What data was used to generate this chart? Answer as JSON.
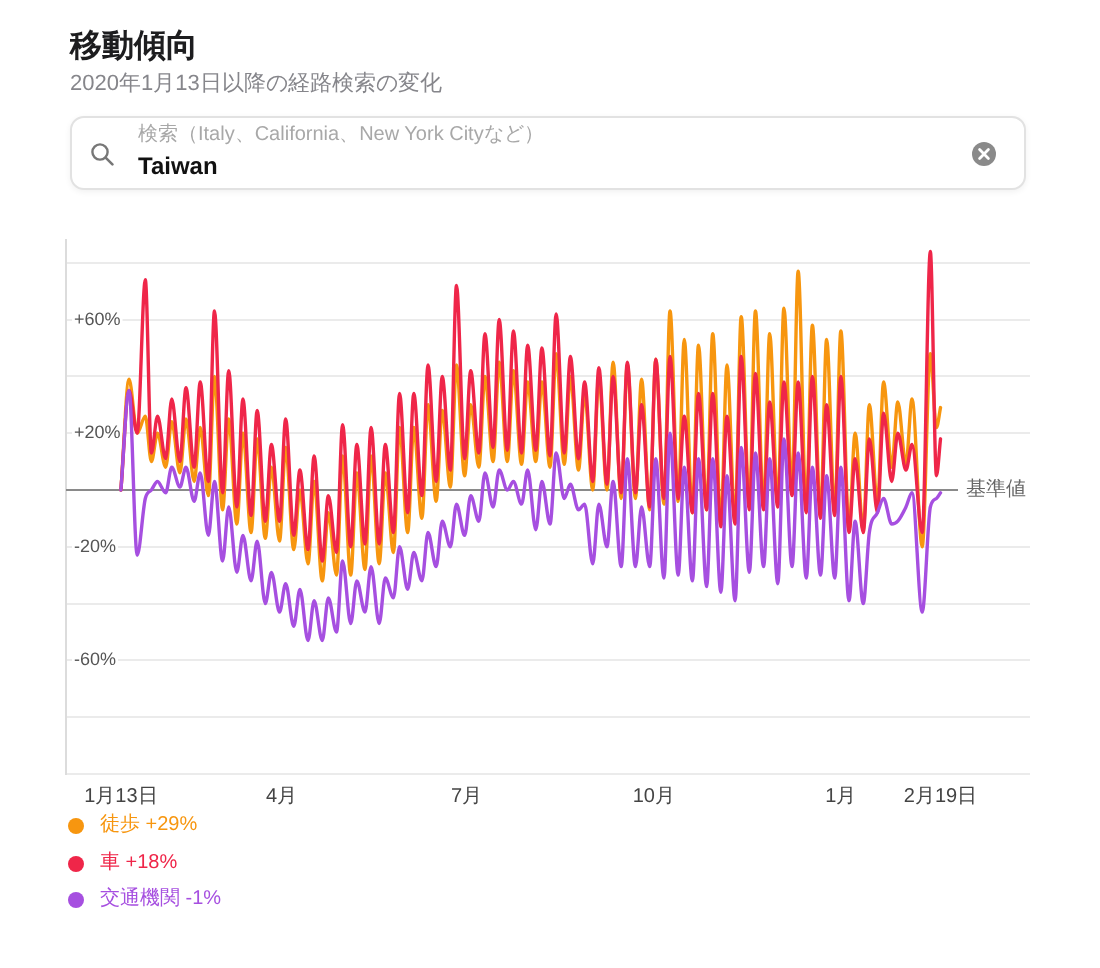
{
  "chart_data": {
    "type": "line",
    "title": "移動傾向",
    "subtitle": "2020年1月13日以降の経路検索の変化",
    "annotations": [
      "検索（Italy、California、New York Cityなど）",
      "Taiwan"
    ],
    "x": [
      "2020-01-13",
      "2020-01-17",
      "2020-01-21",
      "2020-01-25",
      "2020-01-28",
      "2020-01-31",
      "2020-02-04",
      "2020-02-07",
      "2020-02-11",
      "2020-02-14",
      "2020-02-18",
      "2020-02-21",
      "2020-02-25",
      "2020-02-28",
      "2020-03-03",
      "2020-03-06",
      "2020-03-10",
      "2020-03-13",
      "2020-03-17",
      "2020-03-20",
      "2020-03-24",
      "2020-03-27",
      "2020-03-31",
      "2020-04-03",
      "2020-04-07",
      "2020-04-10",
      "2020-04-14",
      "2020-04-17",
      "2020-04-21",
      "2020-04-24",
      "2020-04-28",
      "2020-05-01",
      "2020-05-05",
      "2020-05-08",
      "2020-05-12",
      "2020-05-15",
      "2020-05-19",
      "2020-05-22",
      "2020-05-26",
      "2020-05-29",
      "2020-06-02",
      "2020-06-05",
      "2020-06-09",
      "2020-06-12",
      "2020-06-16",
      "2020-06-19",
      "2020-06-23",
      "2020-06-26",
      "2020-06-30",
      "2020-07-03",
      "2020-07-07",
      "2020-07-10",
      "2020-07-14",
      "2020-07-17",
      "2020-07-21",
      "2020-07-24",
      "2020-07-28",
      "2020-07-31",
      "2020-08-04",
      "2020-08-07",
      "2020-08-11",
      "2020-08-14",
      "2020-08-18",
      "2020-08-21",
      "2020-08-25",
      "2020-08-28",
      "2020-09-01",
      "2020-09-04",
      "2020-09-08",
      "2020-09-11",
      "2020-09-15",
      "2020-09-18",
      "2020-09-22",
      "2020-09-25",
      "2020-09-29",
      "2020-10-02",
      "2020-10-06",
      "2020-10-09",
      "2020-10-13",
      "2020-10-16",
      "2020-10-20",
      "2020-10-23",
      "2020-10-27",
      "2020-10-30",
      "2020-11-03",
      "2020-11-06",
      "2020-11-10",
      "2020-11-13",
      "2020-11-17",
      "2020-11-20",
      "2020-11-24",
      "2020-11-27",
      "2020-12-01",
      "2020-12-04",
      "2020-12-08",
      "2020-12-11",
      "2020-12-15",
      "2020-12-18",
      "2020-12-22",
      "2020-12-25",
      "2020-12-29",
      "2021-01-01",
      "2021-01-05",
      "2021-01-08",
      "2021-01-12",
      "2021-01-15",
      "2021-01-19",
      "2021-01-22",
      "2021-01-26",
      "2021-01-29",
      "2021-02-02",
      "2021-02-05",
      "2021-02-10",
      "2021-02-14",
      "2021-02-17",
      "2021-02-19"
    ],
    "series": [
      {
        "name": "徒歩 +29%",
        "color": "#f7960f",
        "values": [
          0,
          39,
          20,
          26,
          10,
          20,
          8,
          24,
          6,
          25,
          3,
          22,
          -2,
          40,
          -7,
          25,
          -12,
          20,
          -15,
          18,
          -17,
          8,
          -18,
          15,
          -21,
          0,
          -26,
          3,
          -32,
          -8,
          -30,
          12,
          -30,
          6,
          -28,
          12,
          -26,
          6,
          -22,
          22,
          -15,
          22,
          -10,
          30,
          -4,
          28,
          1,
          44,
          5,
          30,
          8,
          40,
          10,
          45,
          10,
          42,
          9,
          38,
          10,
          38,
          8,
          48,
          9,
          40,
          7,
          34,
          0,
          40,
          0,
          45,
          -3,
          44,
          -3,
          39,
          -7,
          46,
          -5,
          63,
          -4,
          53,
          -8,
          51,
          -7,
          55,
          -12,
          44,
          -11,
          61,
          -6,
          63,
          -6,
          55,
          -5,
          64,
          0,
          77,
          -7,
          58,
          -9,
          53,
          -8,
          56,
          -14,
          20,
          -14,
          30,
          -5,
          38,
          8,
          31,
          9,
          32,
          -20,
          48,
          22,
          29
        ]
      },
      {
        "name": "車 +18%",
        "color": "#ef2649",
        "values": [
          0,
          35,
          20,
          74,
          13,
          26,
          11,
          32,
          10,
          36,
          8,
          38,
          3,
          63,
          -1,
          42,
          -6,
          32,
          -9,
          28,
          -11,
          16,
          -11,
          25,
          -16,
          7,
          -21,
          12,
          -25,
          -2,
          -22,
          23,
          -20,
          16,
          -19,
          22,
          -19,
          16,
          -15,
          34,
          -8,
          34,
          -2,
          44,
          3,
          40,
          7,
          72,
          11,
          42,
          13,
          55,
          15,
          60,
          14,
          56,
          13,
          51,
          14,
          50,
          12,
          62,
          13,
          47,
          11,
          38,
          3,
          43,
          2,
          40,
          -1,
          45,
          -1,
          30,
          -6,
          46,
          -3,
          47,
          -3,
          26,
          -8,
          34,
          -7,
          34,
          -13,
          26,
          -12,
          47,
          -7,
          41,
          -7,
          31,
          -6,
          38,
          -2,
          38,
          -8,
          40,
          -10,
          30,
          -9,
          40,
          -15,
          11,
          -15,
          18,
          -8,
          27,
          3,
          20,
          7,
          16,
          -15,
          84,
          5,
          18
        ]
      },
      {
        "name": "交通機関 -1%",
        "color": "#a64fe0",
        "values": [
          0,
          35,
          -23,
          -3,
          0,
          3,
          -1,
          8,
          1,
          8,
          -4,
          6,
          -16,
          3,
          -25,
          -6,
          -29,
          -16,
          -32,
          -18,
          -40,
          -29,
          -43,
          -33,
          -48,
          -35,
          -53,
          -39,
          -53,
          -38,
          -50,
          -25,
          -47,
          -32,
          -43,
          -27,
          -47,
          -31,
          -38,
          -20,
          -35,
          -22,
          -32,
          -15,
          -27,
          -11,
          -20,
          -5,
          -16,
          -2,
          -11,
          6,
          -6,
          7,
          0,
          3,
          -5,
          7,
          -14,
          3,
          -12,
          13,
          -3,
          2,
          -7,
          -5,
          -26,
          -5,
          -20,
          3,
          -27,
          11,
          -27,
          -6,
          -27,
          11,
          -31,
          20,
          -30,
          8,
          -32,
          11,
          -34,
          11,
          -36,
          5,
          -39,
          15,
          -29,
          13,
          -27,
          11,
          -33,
          18,
          -27,
          13,
          -31,
          8,
          -30,
          5,
          -31,
          8,
          -39,
          -11,
          -40,
          -15,
          -8,
          -3,
          -12,
          -11,
          -6,
          -1,
          -43,
          -6,
          -3,
          -1
        ]
      }
    ],
    "xlim": [
      "2019-12-17",
      "2021-04-04"
    ],
    "xticks": [
      {
        "value": "2020-01-13",
        "label": "1月13日"
      },
      {
        "value": "2020-04-01",
        "label": "4月"
      },
      {
        "value": "2020-07-01",
        "label": "7月"
      },
      {
        "value": "2020-10-01",
        "label": "10月"
      },
      {
        "value": "2021-01-01",
        "label": "1月"
      },
      {
        "value": "2021-02-19",
        "label": "2月19日"
      }
    ],
    "ylim": [
      -100,
      88
    ],
    "yticks": [
      {
        "value": -100,
        "label": null
      },
      {
        "value": -80,
        "label": null
      },
      {
        "value": -60,
        "label": "-60%"
      },
      {
        "value": -40,
        "label": null
      },
      {
        "value": -20,
        "label": "-20%"
      },
      {
        "value": 20,
        "label": "+20%"
      },
      {
        "value": 40,
        "label": null
      },
      {
        "value": 60,
        "label": "+60%"
      },
      {
        "value": 80,
        "label": null
      }
    ],
    "ref_lines": [
      {
        "axis": "y",
        "value": 0,
        "label": "基準値",
        "color": "#8a8a8a"
      }
    ],
    "grid": "y",
    "legend": "bottom left",
    "marker": "none"
  }
}
